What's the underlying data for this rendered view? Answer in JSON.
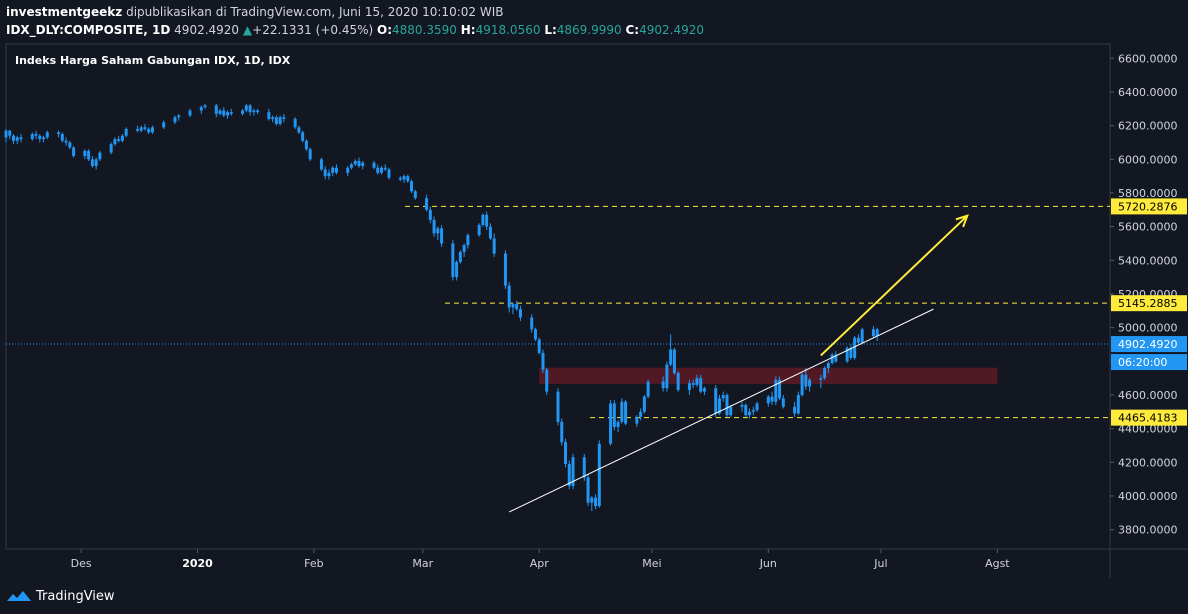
{
  "header": {
    "author": "investmentgeekz",
    "published_text": "dipublikasikan di TradingView.com, Juni 15, 2020 10:10:02 WIB",
    "symbol": "IDX_DLY:COMPOSITE, 1D",
    "last": "4902.4920",
    "change": "+22.1331 (+0.45%)",
    "o_label": "O:",
    "o_value": "4880.3590",
    "h_label": "H:",
    "h_value": "4918.0560",
    "l_label": "L:",
    "l_value": "4869.9990",
    "c_label": "C:",
    "c_value": "4902.4920"
  },
  "footer": {
    "brand": "TradingView",
    "logo_icon": "tradingview-logo-icon"
  },
  "colors": {
    "background": "#131722",
    "candle_up": "#2196f3",
    "candle_down": "#2196f3",
    "last_price": "#2196f3",
    "level": "#ffeb3b",
    "zone": "#5d1a24",
    "trendline": "#ffffff",
    "arrow": "#ffeb3b",
    "axis_text": "#d1d4dc"
  },
  "chart_data": {
    "type": "candlestick",
    "title": "Indeks Harga Saham Gabungan IDX, 1D, IDX",
    "y_ticks": [
      "6600.0000",
      "6400.0000",
      "6200.0000",
      "6000.0000",
      "5800.0000",
      "5600.0000",
      "5400.0000",
      "5200.0000",
      "5000.0000",
      "4800.0000",
      "4600.0000",
      "4400.0000",
      "4200.0000",
      "4000.0000",
      "3800.0000"
    ],
    "y_tick_values": [
      6600,
      6400,
      6200,
      6000,
      5800,
      5600,
      5400,
      5200,
      5000,
      4800,
      4600,
      4400,
      4200,
      4000,
      3800
    ],
    "ylim": [
      3685,
      6685
    ],
    "x_ticks": [
      "Des",
      "2020",
      "Feb",
      "Mar",
      "Apr",
      "Mei",
      "Jun",
      "Jul",
      "Agst"
    ],
    "x_tick_dates": [
      "2019-12-01",
      "2020-01-01",
      "2020-02-01",
      "2020-03-01",
      "2020-04-01",
      "2020-05-01",
      "2020-06-01",
      "2020-07-01",
      "2020-08-01"
    ],
    "xlim": [
      "2019-11-11",
      "2020-08-31"
    ],
    "grid": false,
    "candles": [
      [
        "2019-11-11",
        6130,
        6180,
        6100,
        6170
      ],
      [
        "2019-11-12",
        6170,
        6175,
        6120,
        6140
      ],
      [
        "2019-11-13",
        6140,
        6150,
        6090,
        6110
      ],
      [
        "2019-11-14",
        6110,
        6140,
        6090,
        6130
      ],
      [
        "2019-11-15",
        6130,
        6150,
        6100,
        6120
      ],
      [
        "2019-11-18",
        6120,
        6160,
        6110,
        6150
      ],
      [
        "2019-11-19",
        6150,
        6170,
        6120,
        6140
      ],
      [
        "2019-11-20",
        6140,
        6150,
        6100,
        6120
      ],
      [
        "2019-11-21",
        6120,
        6140,
        6100,
        6130
      ],
      [
        "2019-11-22",
        6130,
        6170,
        6120,
        6160
      ],
      [
        "2019-11-25",
        6160,
        6170,
        6130,
        6150
      ],
      [
        "2019-11-26",
        6150,
        6160,
        6100,
        6110
      ],
      [
        "2019-11-27",
        6110,
        6130,
        6080,
        6100
      ],
      [
        "2019-11-28",
        6100,
        6110,
        6060,
        6070
      ],
      [
        "2019-11-29",
        6070,
        6080,
        6010,
        6020
      ],
      [
        "2019-12-02",
        6020,
        6060,
        6000,
        6050
      ],
      [
        "2019-12-03",
        6050,
        6060,
        5990,
        6000
      ],
      [
        "2019-12-04",
        6000,
        6020,
        5950,
        5960
      ],
      [
        "2019-12-05",
        5960,
        6010,
        5940,
        6000
      ],
      [
        "2019-12-06",
        6000,
        6050,
        5990,
        6040
      ],
      [
        "2019-12-09",
        6040,
        6100,
        6030,
        6090
      ],
      [
        "2019-12-10",
        6090,
        6130,
        6080,
        6120
      ],
      [
        "2019-12-11",
        6120,
        6140,
        6100,
        6110
      ],
      [
        "2019-12-12",
        6110,
        6150,
        6100,
        6140
      ],
      [
        "2019-12-13",
        6140,
        6190,
        6130,
        6180
      ],
      [
        "2019-12-16",
        6180,
        6200,
        6160,
        6170
      ],
      [
        "2019-12-17",
        6170,
        6200,
        6160,
        6190
      ],
      [
        "2019-12-18",
        6190,
        6210,
        6170,
        6180
      ],
      [
        "2019-12-19",
        6180,
        6190,
        6150,
        6160
      ],
      [
        "2019-12-20",
        6160,
        6200,
        6150,
        6190
      ],
      [
        "2019-12-23",
        6190,
        6230,
        6180,
        6220
      ],
      [
        "2019-12-26",
        6220,
        6260,
        6210,
        6250
      ],
      [
        "2019-12-27",
        6250,
        6270,
        6230,
        6260
      ],
      [
        "2019-12-30",
        6260,
        6300,
        6250,
        6290
      ],
      [
        "2020-01-02",
        6290,
        6320,
        6270,
        6310
      ],
      [
        "2020-01-03",
        6310,
        6330,
        6300,
        6320
      ],
      [
        "2020-01-06",
        6320,
        6330,
        6250,
        6270
      ],
      [
        "2020-01-07",
        6270,
        6300,
        6260,
        6290
      ],
      [
        "2020-01-08",
        6290,
        6310,
        6250,
        6260
      ],
      [
        "2020-01-09",
        6260,
        6290,
        6240,
        6280
      ],
      [
        "2020-01-10",
        6280,
        6300,
        6260,
        6270
      ],
      [
        "2020-01-13",
        6270,
        6300,
        6260,
        6290
      ],
      [
        "2020-01-14",
        6290,
        6330,
        6280,
        6320
      ],
      [
        "2020-01-15",
        6320,
        6330,
        6260,
        6280
      ],
      [
        "2020-01-16",
        6280,
        6300,
        6260,
        6290
      ],
      [
        "2020-01-17",
        6290,
        6300,
        6270,
        6280
      ],
      [
        "2020-01-20",
        6280,
        6300,
        6230,
        6240
      ],
      [
        "2020-01-21",
        6240,
        6260,
        6220,
        6250
      ],
      [
        "2020-01-22",
        6250,
        6260,
        6200,
        6210
      ],
      [
        "2020-01-23",
        6210,
        6260,
        6200,
        6250
      ],
      [
        "2020-01-24",
        6250,
        6270,
        6220,
        6240
      ],
      [
        "2020-01-27",
        6240,
        6250,
        6180,
        6190
      ],
      [
        "2020-01-28",
        6190,
        6200,
        6150,
        6160
      ],
      [
        "2020-01-29",
        6160,
        6170,
        6100,
        6110
      ],
      [
        "2020-01-30",
        6110,
        6120,
        6050,
        6060
      ],
      [
        "2020-01-31",
        6060,
        6070,
        5990,
        6000
      ],
      [
        "2020-02-03",
        6000,
        6010,
        5930,
        5940
      ],
      [
        "2020-02-04",
        5940,
        5960,
        5880,
        5900
      ],
      [
        "2020-02-05",
        5900,
        5940,
        5880,
        5920
      ],
      [
        "2020-02-06",
        5920,
        5960,
        5900,
        5950
      ],
      [
        "2020-02-07",
        5950,
        5970,
        5910,
        5920
      ],
      [
        "2020-02-10",
        5920,
        5960,
        5900,
        5950
      ],
      [
        "2020-02-11",
        5950,
        5980,
        5940,
        5970
      ],
      [
        "2020-02-12",
        5970,
        6000,
        5960,
        5990
      ],
      [
        "2020-02-13",
        5990,
        6010,
        5950,
        5960
      ],
      [
        "2020-02-14",
        5960,
        5990,
        5940,
        5980
      ],
      [
        "2020-02-17",
        5980,
        5990,
        5940,
        5950
      ],
      [
        "2020-02-18",
        5950,
        5970,
        5910,
        5920
      ],
      [
        "2020-02-19",
        5920,
        5960,
        5910,
        5950
      ],
      [
        "2020-02-20",
        5950,
        5970,
        5930,
        5940
      ],
      [
        "2020-02-21",
        5940,
        5950,
        5880,
        5890
      ],
      [
        "2020-02-24",
        5890,
        5900,
        5870,
        5880
      ],
      [
        "2020-02-25",
        5880,
        5910,
        5860,
        5900
      ],
      [
        "2020-02-26",
        5900,
        5910,
        5860,
        5870
      ],
      [
        "2020-02-27",
        5870,
        5880,
        5800,
        5810
      ],
      [
        "2020-02-28",
        5810,
        5820,
        5760,
        5770
      ],
      [
        "2020-03-02",
        5770,
        5790,
        5690,
        5700
      ],
      [
        "2020-03-03",
        5700,
        5720,
        5620,
        5640
      ],
      [
        "2020-03-04",
        5640,
        5660,
        5540,
        5560
      ],
      [
        "2020-03-05",
        5560,
        5600,
        5520,
        5590
      ],
      [
        "2020-03-06",
        5590,
        5610,
        5480,
        5500
      ],
      [
        "2020-03-09",
        5500,
        5520,
        5280,
        5300
      ],
      [
        "2020-03-10",
        5300,
        5400,
        5280,
        5390
      ],
      [
        "2020-03-11",
        5390,
        5460,
        5380,
        5450
      ],
      [
        "2020-03-12",
        5450,
        5500,
        5420,
        5490
      ],
      [
        "2020-03-13",
        5490,
        5560,
        5470,
        5550
      ],
      [
        "2020-03-16",
        5550,
        5620,
        5540,
        5610
      ],
      [
        "2020-03-17",
        5610,
        5680,
        5600,
        5670
      ],
      [
        "2020-03-18",
        5670,
        5690,
        5580,
        5600
      ],
      [
        "2020-03-19",
        5600,
        5620,
        5520,
        5530
      ],
      [
        "2020-03-20",
        5530,
        5560,
        5420,
        5440
      ],
      [
        "2020-03-23",
        5440,
        5460,
        5230,
        5250
      ],
      [
        "2020-03-24",
        5250,
        5270,
        5090,
        5120
      ],
      [
        "2020-03-25",
        5120,
        5150,
        5080,
        5140
      ],
      [
        "2020-03-26",
        5140,
        5160,
        5100,
        5110
      ],
      [
        "2020-03-27",
        5110,
        5130,
        5040,
        5060
      ],
      [
        "2020-03-30",
        5060,
        5080,
        4970,
        4990
      ],
      [
        "2020-03-31",
        4990,
        5000,
        4920,
        4930
      ],
      [
        "2020-04-01",
        4930,
        4940,
        4840,
        4850
      ],
      [
        "2020-04-02",
        4850,
        4870,
        4730,
        4750
      ],
      [
        "2020-04-03",
        4750,
        4760,
        4600,
        4620
      ],
      [
        "2020-04-06",
        4620,
        4640,
        4420,
        4440
      ],
      [
        "2020-04-07",
        4440,
        4460,
        4300,
        4320
      ],
      [
        "2020-04-08",
        4320,
        4340,
        4170,
        4190
      ],
      [
        "2020-04-09",
        4190,
        4210,
        4040,
        4060
      ],
      [
        "2020-04-10",
        4060,
        4250,
        4040,
        4230
      ],
      [
        "2020-04-13",
        4230,
        4250,
        4090,
        4110
      ],
      [
        "2020-04-14",
        4110,
        4130,
        3940,
        3960
      ],
      [
        "2020-04-15",
        3960,
        4000,
        3910,
        3990
      ],
      [
        "2020-04-16",
        3990,
        4010,
        3920,
        3940
      ],
      [
        "2020-04-17",
        3940,
        4330,
        3930,
        4310
      ],
      [
        "2020-04-20",
        4310,
        4570,
        4300,
        4550
      ],
      [
        "2020-04-21",
        4550,
        4570,
        4390,
        4410
      ],
      [
        "2020-04-22",
        4410,
        4450,
        4380,
        4440
      ],
      [
        "2020-04-23",
        4440,
        4580,
        4430,
        4560
      ],
      [
        "2020-04-24",
        4560,
        4570,
        4420,
        4430
      ],
      [
        "2020-04-27",
        4430,
        4480,
        4410,
        4470
      ],
      [
        "2020-04-28",
        4470,
        4520,
        4450,
        4500
      ],
      [
        "2020-04-29",
        4500,
        4600,
        4490,
        4590
      ],
      [
        "2020-04-30",
        4590,
        4690,
        4580,
        4680
      ],
      [
        "2020-05-04",
        4680,
        4710,
        4620,
        4640
      ],
      [
        "2020-05-05",
        4640,
        4800,
        4620,
        4780
      ],
      [
        "2020-05-06",
        4780,
        4960,
        4770,
        4870
      ],
      [
        "2020-05-07",
        4870,
        4880,
        4720,
        4730
      ],
      [
        "2020-05-08",
        4730,
        4740,
        4620,
        4630
      ],
      [
        "2020-05-11",
        4630,
        4690,
        4600,
        4670
      ],
      [
        "2020-05-12",
        4670,
        4690,
        4640,
        4660
      ],
      [
        "2020-05-13",
        4660,
        4720,
        4650,
        4700
      ],
      [
        "2020-05-14",
        4700,
        4720,
        4610,
        4620
      ],
      [
        "2020-05-15",
        4620,
        4650,
        4600,
        4640
      ],
      [
        "2020-05-18",
        4640,
        4660,
        4470,
        4490
      ],
      [
        "2020-05-19",
        4490,
        4600,
        4480,
        4580
      ],
      [
        "2020-05-20",
        4580,
        4620,
        4560,
        4600
      ],
      [
        "2020-05-21",
        4600,
        4610,
        4470,
        4480
      ],
      [
        "2020-05-22",
        4480,
        4540,
        4470,
        4530
      ],
      [
        "2020-05-25",
        4530,
        4560,
        4500,
        4540
      ],
      [
        "2020-05-26",
        4540,
        4550,
        4470,
        4480
      ],
      [
        "2020-05-27",
        4480,
        4520,
        4460,
        4500
      ],
      [
        "2020-05-28",
        4500,
        4530,
        4480,
        4510
      ],
      [
        "2020-05-29",
        4510,
        4560,
        4500,
        4550
      ],
      [
        "2020-06-01",
        4550,
        4600,
        4530,
        4590
      ],
      [
        "2020-06-02",
        4590,
        4620,
        4540,
        4560
      ],
      [
        "2020-06-03",
        4560,
        4710,
        4540,
        4690
      ],
      [
        "2020-06-04",
        4690,
        4710,
        4570,
        4580
      ],
      [
        "2020-06-05",
        4580,
        4600,
        4520,
        4530
      ],
      [
        "2020-06-08",
        4530,
        4560,
        4470,
        4490
      ],
      [
        "2020-06-09",
        4490,
        4620,
        4480,
        4600
      ],
      [
        "2020-06-10",
        4600,
        4730,
        4590,
        4720
      ],
      [
        "2020-06-11",
        4720,
        4760,
        4630,
        4650
      ],
      [
        "2020-06-12",
        4650,
        4700,
        4620,
        4690
      ],
      [
        "2020-06-15",
        4690,
        4720,
        4640,
        4700
      ],
      [
        "2020-06-16",
        4700,
        4770,
        4690,
        4760
      ],
      [
        "2020-06-17",
        4760,
        4800,
        4730,
        4790
      ],
      [
        "2020-06-18",
        4790,
        4850,
        4780,
        4840
      ],
      [
        "2020-06-19",
        4840,
        4860,
        4790,
        4800
      ],
      [
        "2020-06-22",
        4800,
        4890,
        4790,
        4880
      ],
      [
        "2020-06-23",
        4880,
        4900,
        4810,
        4820
      ],
      [
        "2020-06-24",
        4820,
        4950,
        4810,
        4940
      ],
      [
        "2020-06-25",
        4940,
        4960,
        4900,
        4910
      ],
      [
        "2020-06-26",
        4910,
        5000,
        4900,
        4990
      ],
      [
        "2020-06-29",
        4990,
        5010,
        4940,
        4950
      ],
      [
        "2020-06-30",
        4950,
        5000,
        4920,
        4990
      ]
    ],
    "last_price": 4902.492,
    "last_price_label": "4902.4920",
    "countdown_label": "06:20:00",
    "levels": [
      {
        "value": 5720.2876,
        "label": "5720.2876"
      },
      {
        "value": 5145.2885,
        "label": "5145.2885"
      },
      {
        "value": 4465.4183,
        "label": "4465.4183"
      }
    ],
    "zone": {
      "from": "2020-04-01",
      "to": "2020-08-01",
      "low": 4665,
      "high": 4762
    },
    "trendline": {
      "start": [
        "2020-03-24",
        3905
      ],
      "end": [
        "2020-07-15",
        5110
      ]
    },
    "arrow": {
      "start": [
        "2020-06-15",
        4835
      ],
      "end": [
        "2020-07-24",
        5665
      ]
    }
  }
}
